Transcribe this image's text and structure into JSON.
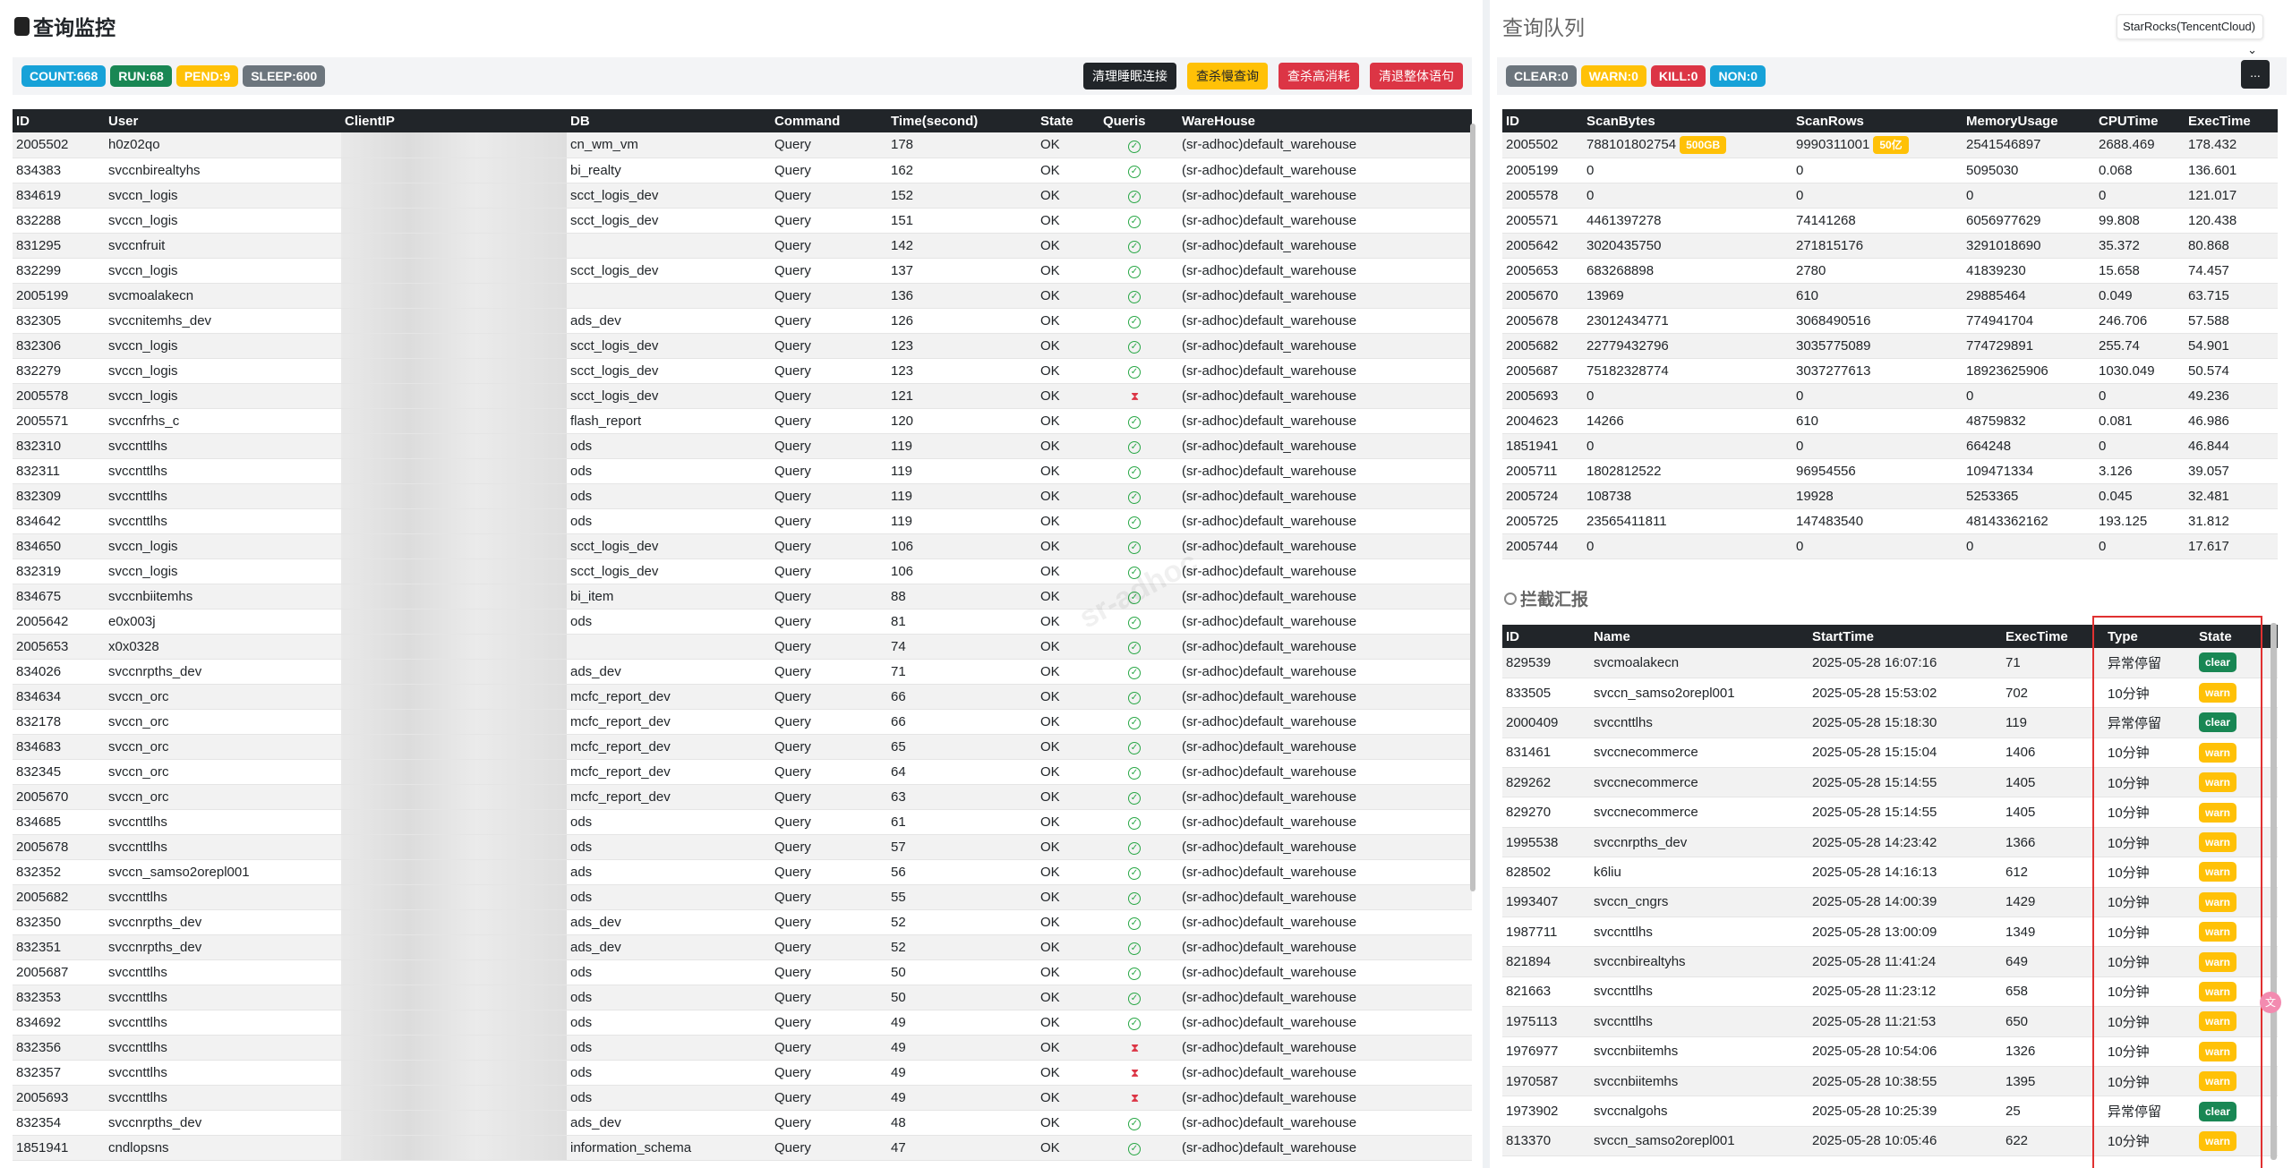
{
  "left": {
    "title": "查询监控",
    "badges": [
      {
        "label": "COUNT:668",
        "color": "#17a2d8"
      },
      {
        "label": "RUN:68",
        "color": "#198754"
      },
      {
        "label": "PEND:9",
        "color": "#ffc107"
      },
      {
        "label": "SLEEP:600",
        "color": "#6c757d"
      }
    ],
    "buttons": [
      "清理睡眠连接",
      "查杀慢查询",
      "查杀高消耗",
      "清退整体语句"
    ],
    "headers": [
      "ID",
      "User",
      "ClientIP",
      "DB",
      "Command",
      "Time(second)",
      "State",
      "Queris",
      "WareHouse"
    ],
    "watermark": "sr-adhoc",
    "rows": [
      [
        "2005502",
        "h0z02qo",
        "",
        "cn_wm_vm",
        "Query",
        "178",
        "OK",
        "ok",
        "(sr-adhoc)default_warehouse"
      ],
      [
        "834383",
        "svccnbirealtyhs",
        "",
        "bi_realty",
        "Query",
        "162",
        "OK",
        "ok",
        "(sr-adhoc)default_warehouse"
      ],
      [
        "834619",
        "svccn_logis",
        "",
        "scct_logis_dev",
        "Query",
        "152",
        "OK",
        "ok",
        "(sr-adhoc)default_warehouse"
      ],
      [
        "832288",
        "svccn_logis",
        "",
        "scct_logis_dev",
        "Query",
        "151",
        "OK",
        "ok",
        "(sr-adhoc)default_warehouse"
      ],
      [
        "831295",
        "svccnfruit",
        "",
        "",
        "Query",
        "142",
        "OK",
        "ok",
        "(sr-adhoc)default_warehouse"
      ],
      [
        "832299",
        "svccn_logis",
        "",
        "scct_logis_dev",
        "Query",
        "137",
        "OK",
        "ok",
        "(sr-adhoc)default_warehouse"
      ],
      [
        "2005199",
        "svcmoalakecn",
        "",
        "",
        "Query",
        "136",
        "OK",
        "ok",
        "(sr-adhoc)default_warehouse"
      ],
      [
        "832305",
        "svccnitemhs_dev",
        "",
        "ads_dev",
        "Query",
        "126",
        "OK",
        "ok",
        "(sr-adhoc)default_warehouse"
      ],
      [
        "832306",
        "svccn_logis",
        "",
        "scct_logis_dev",
        "Query",
        "123",
        "OK",
        "ok",
        "(sr-adhoc)default_warehouse"
      ],
      [
        "832279",
        "svccn_logis",
        "",
        "scct_logis_dev",
        "Query",
        "123",
        "OK",
        "ok",
        "(sr-adhoc)default_warehouse"
      ],
      [
        "2005578",
        "svccn_logis",
        "",
        "scct_logis_dev",
        "Query",
        "121",
        "OK",
        "wait",
        "(sr-adhoc)default_warehouse"
      ],
      [
        "2005571",
        "svccnfrhs_c",
        "",
        "flash_report",
        "Query",
        "120",
        "OK",
        "ok",
        "(sr-adhoc)default_warehouse"
      ],
      [
        "832310",
        "svccnttlhs",
        "",
        "ods",
        "Query",
        "119",
        "OK",
        "ok",
        "(sr-adhoc)default_warehouse"
      ],
      [
        "832311",
        "svccnttlhs",
        "",
        "ods",
        "Query",
        "119",
        "OK",
        "ok",
        "(sr-adhoc)default_warehouse"
      ],
      [
        "832309",
        "svccnttlhs",
        "",
        "ods",
        "Query",
        "119",
        "OK",
        "ok",
        "(sr-adhoc)default_warehouse"
      ],
      [
        "834642",
        "svccnttlhs",
        "",
        "ods",
        "Query",
        "119",
        "OK",
        "ok",
        "(sr-adhoc)default_warehouse"
      ],
      [
        "834650",
        "svccn_logis",
        "",
        "scct_logis_dev",
        "Query",
        "106",
        "OK",
        "ok",
        "(sr-adhoc)default_warehouse"
      ],
      [
        "832319",
        "svccn_logis",
        "",
        "scct_logis_dev",
        "Query",
        "106",
        "OK",
        "ok",
        "(sr-adhoc)default_warehouse"
      ],
      [
        "834675",
        "svccnbiitemhs",
        "",
        "bi_item",
        "Query",
        "88",
        "OK",
        "ok",
        "(sr-adhoc)default_warehouse"
      ],
      [
        "2005642",
        "e0x003j",
        "",
        "ods",
        "Query",
        "81",
        "OK",
        "ok",
        "(sr-adhoc)default_warehouse"
      ],
      [
        "2005653",
        "x0x0328",
        "",
        "",
        "Query",
        "74",
        "OK",
        "ok",
        "(sr-adhoc)default_warehouse"
      ],
      [
        "834026",
        "svccnrpths_dev",
        "",
        "ads_dev",
        "Query",
        "71",
        "OK",
        "ok",
        "(sr-adhoc)default_warehouse"
      ],
      [
        "834634",
        "svccn_orc",
        "",
        "mcfc_report_dev",
        "Query",
        "66",
        "OK",
        "ok",
        "(sr-adhoc)default_warehouse"
      ],
      [
        "832178",
        "svccn_orc",
        "",
        "mcfc_report_dev",
        "Query",
        "66",
        "OK",
        "ok",
        "(sr-adhoc)default_warehouse"
      ],
      [
        "834683",
        "svccn_orc",
        "",
        "mcfc_report_dev",
        "Query",
        "65",
        "OK",
        "ok",
        "(sr-adhoc)default_warehouse"
      ],
      [
        "832345",
        "svccn_orc",
        "",
        "mcfc_report_dev",
        "Query",
        "64",
        "OK",
        "ok",
        "(sr-adhoc)default_warehouse"
      ],
      [
        "2005670",
        "svccn_orc",
        "",
        "mcfc_report_dev",
        "Query",
        "63",
        "OK",
        "ok",
        "(sr-adhoc)default_warehouse"
      ],
      [
        "834685",
        "svccnttlhs",
        "",
        "ods",
        "Query",
        "61",
        "OK",
        "ok",
        "(sr-adhoc)default_warehouse"
      ],
      [
        "2005678",
        "svccnttlhs",
        "",
        "ods",
        "Query",
        "57",
        "OK",
        "ok",
        "(sr-adhoc)default_warehouse"
      ],
      [
        "832352",
        "svccn_samso2orepl001",
        "",
        "ads",
        "Query",
        "56",
        "OK",
        "ok",
        "(sr-adhoc)default_warehouse"
      ],
      [
        "2005682",
        "svccnttlhs",
        "",
        "ods",
        "Query",
        "55",
        "OK",
        "ok",
        "(sr-adhoc)default_warehouse"
      ],
      [
        "832350",
        "svccnrpths_dev",
        "",
        "ads_dev",
        "Query",
        "52",
        "OK",
        "ok",
        "(sr-adhoc)default_warehouse"
      ],
      [
        "832351",
        "svccnrpths_dev",
        "",
        "ads_dev",
        "Query",
        "52",
        "OK",
        "ok",
        "(sr-adhoc)default_warehouse"
      ],
      [
        "2005687",
        "svccnttlhs",
        "",
        "ods",
        "Query",
        "50",
        "OK",
        "ok",
        "(sr-adhoc)default_warehouse"
      ],
      [
        "832353",
        "svccnttlhs",
        "",
        "ods",
        "Query",
        "50",
        "OK",
        "ok",
        "(sr-adhoc)default_warehouse"
      ],
      [
        "834692",
        "svccnttlhs",
        "",
        "ods",
        "Query",
        "49",
        "OK",
        "ok",
        "(sr-adhoc)default_warehouse"
      ],
      [
        "832356",
        "svccnttlhs",
        "",
        "ods",
        "Query",
        "49",
        "OK",
        "wait",
        "(sr-adhoc)default_warehouse"
      ],
      [
        "832357",
        "svccnttlhs",
        "",
        "ods",
        "Query",
        "49",
        "OK",
        "wait",
        "(sr-adhoc)default_warehouse"
      ],
      [
        "2005693",
        "svccnttlhs",
        "",
        "ods",
        "Query",
        "49",
        "OK",
        "wait",
        "(sr-adhoc)default_warehouse"
      ],
      [
        "832354",
        "svccnrpths_dev",
        "",
        "ads_dev",
        "Query",
        "48",
        "OK",
        "ok",
        "(sr-adhoc)default_warehouse"
      ],
      [
        "1851941",
        "cndlopsns",
        "",
        "information_schema",
        "Query",
        "47",
        "OK",
        "ok",
        "(sr-adhoc)default_warehouse"
      ]
    ]
  },
  "right": {
    "title": "查询队列",
    "cluster_select": "StarRocks(TencentCloud)",
    "badges": [
      {
        "label": "CLEAR:0",
        "color": "#6c757d"
      },
      {
        "label": "WARN:0",
        "color": "#ffc107"
      },
      {
        "label": "KILL:0",
        "color": "#dc3545"
      },
      {
        "label": "NON:0",
        "color": "#17a2d8"
      }
    ],
    "more_button": "...",
    "queue_headers": [
      "ID",
      "ScanBytes",
      "ScanRows",
      "MemoryUsage",
      "CPUTime",
      "ExecTime"
    ],
    "queue_rows": [
      [
        "2005502",
        "788101802754",
        "9990311001",
        "2541546897",
        "2688.469",
        "178.432"
      ],
      [
        "2005199",
        "0",
        "0",
        "5095030",
        "0.068",
        "136.601"
      ],
      [
        "2005578",
        "0",
        "0",
        "0",
        "0",
        "121.017"
      ],
      [
        "2005571",
        "4461397278",
        "74141268",
        "6056977629",
        "99.808",
        "120.438"
      ],
      [
        "2005642",
        "3020435750",
        "271815176",
        "3291018690",
        "35.372",
        "80.868"
      ],
      [
        "2005653",
        "683268898",
        "2780",
        "41839230",
        "15.658",
        "74.457"
      ],
      [
        "2005670",
        "13969",
        "610",
        "29885464",
        "0.049",
        "63.715"
      ],
      [
        "2005678",
        "23012434771",
        "3068490516",
        "774941704",
        "246.706",
        "57.588"
      ],
      [
        "2005682",
        "22779432796",
        "3035775089",
        "774729891",
        "255.74",
        "54.901"
      ],
      [
        "2005687",
        "75182328774",
        "3037277613",
        "18923625906",
        "1030.049",
        "50.574"
      ],
      [
        "2005693",
        "0",
        "0",
        "0",
        "0",
        "49.236"
      ],
      [
        "2004623",
        "14266",
        "610",
        "48759832",
        "0.081",
        "46.986"
      ],
      [
        "1851941",
        "0",
        "0",
        "664248",
        "0",
        "46.844"
      ],
      [
        "2005711",
        "1802812522",
        "96954556",
        "109471334",
        "3.126",
        "39.057"
      ],
      [
        "2005724",
        "108738",
        "19928",
        "5253365",
        "0.045",
        "32.481"
      ],
      [
        "2005725",
        "23565411811",
        "147483540",
        "48143362162",
        "193.125",
        "31.812"
      ],
      [
        "2005744",
        "0",
        "0",
        "0",
        "0",
        "17.617"
      ]
    ],
    "highlight_bytes": "500GB",
    "highlight_rows": "50亿",
    "intercept_title": "拦截汇报",
    "intercept_headers": [
      "ID",
      "Name",
      "StartTime",
      "ExecTime",
      "Type",
      "State"
    ],
    "intercept_rows": [
      [
        "829539",
        "svcmoalakecn",
        "2025-05-28 16:07:16",
        "71",
        "异常停留",
        "clear"
      ],
      [
        "833505",
        "svccn_samso2orepl001",
        "2025-05-28 15:53:02",
        "702",
        "10分钟",
        "warn"
      ],
      [
        "2000409",
        "svccnttlhs",
        "2025-05-28 15:18:30",
        "119",
        "异常停留",
        "clear"
      ],
      [
        "831461",
        "svccnecommerce",
        "2025-05-28 15:15:04",
        "1406",
        "10分钟",
        "warn"
      ],
      [
        "829262",
        "svccnecommerce",
        "2025-05-28 15:14:55",
        "1405",
        "10分钟",
        "warn"
      ],
      [
        "829270",
        "svccnecommerce",
        "2025-05-28 15:14:55",
        "1405",
        "10分钟",
        "warn"
      ],
      [
        "1995538",
        "svccnrpths_dev",
        "2025-05-28 14:23:42",
        "1366",
        "10分钟",
        "warn"
      ],
      [
        "828502",
        "k6liu",
        "2025-05-28 14:16:13",
        "612",
        "10分钟",
        "warn"
      ],
      [
        "1993407",
        "svccn_cngrs",
        "2025-05-28 14:00:39",
        "1429",
        "10分钟",
        "warn"
      ],
      [
        "1987711",
        "svccnttlhs",
        "2025-05-28 13:00:09",
        "1349",
        "10分钟",
        "warn"
      ],
      [
        "821894",
        "svccnbirealtyhs",
        "2025-05-28 11:41:24",
        "649",
        "10分钟",
        "warn"
      ],
      [
        "821663",
        "svccnttlhs",
        "2025-05-28 11:23:12",
        "658",
        "10分钟",
        "warn"
      ],
      [
        "1975113",
        "svccnttlhs",
        "2025-05-28 11:21:53",
        "650",
        "10分钟",
        "warn"
      ],
      [
        "1976977",
        "svccnbiitemhs",
        "2025-05-28 10:54:06",
        "1326",
        "10分钟",
        "warn"
      ],
      [
        "1970587",
        "svccnbiitemhs",
        "2025-05-28 10:38:55",
        "1395",
        "10分钟",
        "warn"
      ],
      [
        "1973902",
        "svccnalgohs",
        "2025-05-28 10:25:39",
        "25",
        "异常停留",
        "clear"
      ],
      [
        "813370",
        "svccn_samso2orepl001",
        "2025-05-28 10:05:46",
        "622",
        "10分钟",
        "warn"
      ]
    ],
    "state_colors": {
      "clear": "#198754",
      "warn": "#ffc107"
    }
  }
}
